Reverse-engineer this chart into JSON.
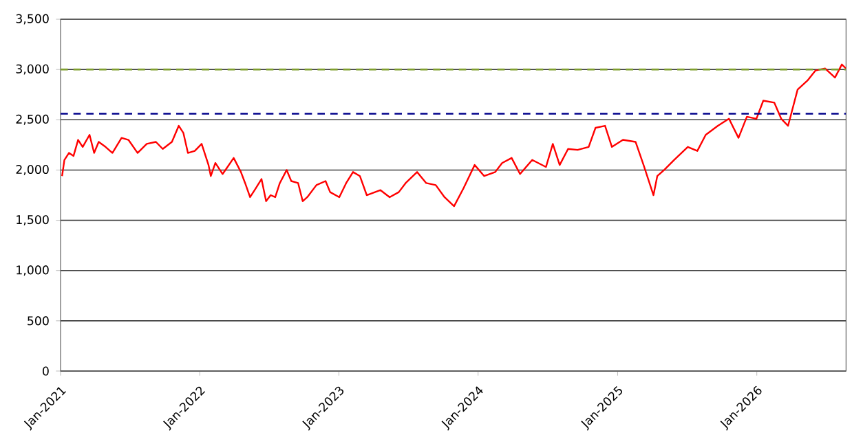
{
  "chart_data": {
    "type": "line",
    "x": [
      "2021-01-05",
      "2021-01-11",
      "2021-01-23",
      "2021-02-04",
      "2021-02-16",
      "2021-02-28",
      "2021-03-18",
      "2021-03-30",
      "2021-04-11",
      "2021-04-29",
      "2021-05-17",
      "2021-06-10",
      "2021-06-28",
      "2021-07-22",
      "2021-08-15",
      "2021-09-08",
      "2021-09-26",
      "2021-10-20",
      "2021-11-07",
      "2021-11-19",
      "2021-12-01",
      "2021-12-19",
      "2022-01-06",
      "2022-01-24",
      "2022-01-30",
      "2022-02-11",
      "2022-03-02",
      "2022-03-13",
      "2022-03-31",
      "2022-04-19",
      "2022-04-30",
      "2022-05-13",
      "2022-05-25",
      "2022-06-12",
      "2022-06-24",
      "2022-07-06",
      "2022-07-18",
      "2022-07-30",
      "2022-08-17",
      "2022-08-29",
      "2022-09-16",
      "2022-09-28",
      "2022-10-10",
      "2022-11-03",
      "2022-11-27",
      "2022-12-09",
      "2023-01-02",
      "2023-01-20",
      "2023-02-07",
      "2023-02-25",
      "2023-03-15",
      "2023-04-20",
      "2023-05-14",
      "2023-06-07",
      "2023-06-25",
      "2023-07-25",
      "2023-08-18",
      "2023-09-12",
      "2023-10-05",
      "2023-10-30",
      "2023-11-24",
      "2023-12-23",
      "2024-01-17",
      "2024-02-15",
      "2024-03-04",
      "2024-03-29",
      "2024-04-20",
      "2024-05-22",
      "2024-06-27",
      "2024-07-15",
      "2024-08-02",
      "2024-08-24",
      "2024-09-18",
      "2024-10-17",
      "2024-11-04",
      "2024-11-29",
      "2024-12-17",
      "2025-01-15",
      "2025-02-17",
      "2025-03-10",
      "2025-04-05",
      "2025-04-15",
      "2025-05-03",
      "2025-05-29",
      "2025-07-04",
      "2025-07-29",
      "2025-08-20",
      "2025-09-21",
      "2025-10-20",
      "2025-11-14",
      "2025-12-06",
      "2025-12-31",
      "2026-01-18",
      "2026-02-16",
      "2026-03-06",
      "2026-03-24",
      "2026-04-18",
      "2026-05-14",
      "2026-06-04",
      "2026-06-29",
      "2026-07-25",
      "2026-08-12",
      "2026-08-23"
    ],
    "series": [
      {
        "color": "#ff0000",
        "values": [
          1940,
          2100,
          2170,
          2140,
          2300,
          2230,
          2350,
          2170,
          2280,
          2230,
          2170,
          2320,
          2300,
          2170,
          2260,
          2280,
          2210,
          2280,
          2440,
          2370,
          2170,
          2190,
          2260,
          2050,
          1940,
          2070,
          1960,
          2020,
          2120,
          1980,
          1870,
          1730,
          1800,
          1910,
          1690,
          1750,
          1730,
          1870,
          2000,
          1890,
          1870,
          1690,
          1730,
          1850,
          1890,
          1780,
          1730,
          1870,
          1980,
          1940,
          1750,
          1800,
          1730,
          1780,
          1870,
          1980,
          1870,
          1850,
          1730,
          1640,
          1820,
          2050,
          1940,
          1980,
          2070,
          2120,
          1960,
          2100,
          2030,
          2260,
          2050,
          2210,
          2200,
          2230,
          2420,
          2440,
          2230,
          2300,
          2280,
          2050,
          1750,
          1940,
          2000,
          2100,
          2230,
          2190,
          2350,
          2440,
          2510,
          2320,
          2530,
          2510,
          2690,
          2670,
          2510,
          2440,
          2800,
          2890,
          2990,
          3010,
          2920,
          3050,
          3010
        ]
      }
    ],
    "xlim": [
      "2021-01-01",
      "2026-08-23"
    ],
    "xticks": [
      {
        "value": "2021-01",
        "label": "Jan-2021"
      },
      {
        "value": "2022-01",
        "label": "Jan-2022"
      },
      {
        "value": "2023-01",
        "label": "Jan-2023"
      },
      {
        "value": "2024-01",
        "label": "Jan-2024"
      },
      {
        "value": "2025-01",
        "label": "Jan-2025"
      },
      {
        "value": "2026-01",
        "label": "Jan-2026"
      }
    ],
    "ylim": [
      0,
      3500
    ],
    "yticks": [
      0,
      500,
      {
        "value": 1000,
        "label": "1,000"
      },
      {
        "value": 1500,
        "label": "1,500"
      },
      {
        "value": 2000,
        "label": "2,000"
      },
      {
        "value": 2500,
        "label": "2,500"
      },
      {
        "value": 3000,
        "label": "3,000"
      },
      {
        "value": 3500,
        "label": "3,500"
      }
    ],
    "grid": "y",
    "marker": "none",
    "line_style": "solid",
    "ref_lines": [
      {
        "axis": "y",
        "value": 3000,
        "color": "#7f9f2f",
        "line_style": "dashed"
      },
      {
        "axis": "y",
        "value": 2560,
        "color": "#00008b",
        "line_style": "dashed"
      }
    ]
  }
}
